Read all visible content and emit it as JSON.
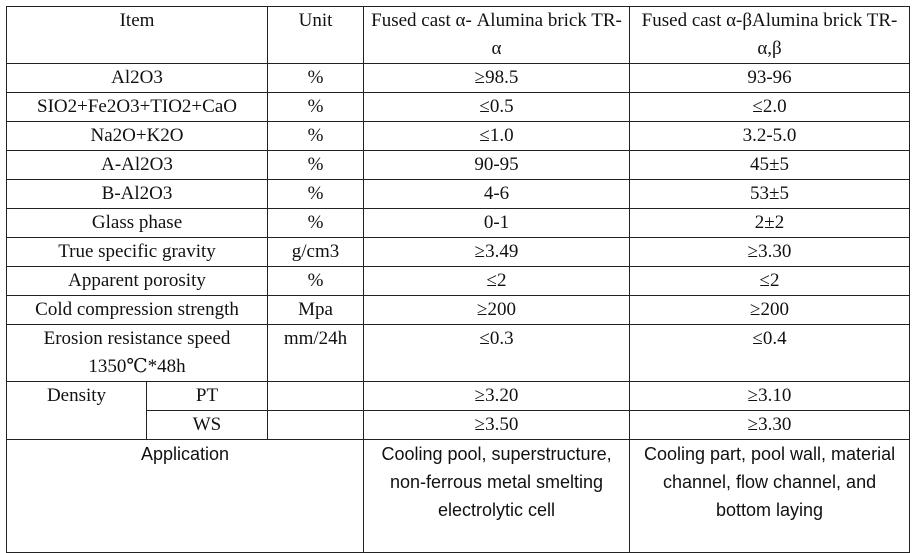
{
  "header": {
    "item": "Item",
    "unit": "Unit",
    "col_a": "Fused cast α- Alumina brick\nTR-α",
    "col_b": "Fused cast α-βAlumina brick\nTR-α,β"
  },
  "rows": [
    {
      "item": "Al2O3",
      "unit": "%",
      "a": "≥98.5",
      "b": "93-96"
    },
    {
      "item": "SIO2+Fe2O3+TIO2+CaO",
      "unit": "%",
      "a": "≤0.5",
      "b": "≤2.0"
    },
    {
      "item": "Na2O+K2O",
      "unit": "%",
      "a": "≤1.0",
      "b": "3.2-5.0"
    },
    {
      "item": "A-Al2O3",
      "unit": "%",
      "a": "90-95",
      "b": "45±5"
    },
    {
      "item": "B-Al2O3",
      "unit": "%",
      "a": "4-6",
      "b": "53±5"
    },
    {
      "item": "Glass phase",
      "unit": "%",
      "a": "0-1",
      "b": "2±2"
    },
    {
      "item": "True specific gravity",
      "unit": "g/cm3",
      "a": "≥3.49",
      "b": "≥3.30"
    },
    {
      "item": "Apparent porosity",
      "unit": "%",
      "a": "≤2",
      "b": "≤2"
    },
    {
      "item": "Cold compression strength",
      "unit": "Mpa",
      "a": "≥200",
      "b": "≥200"
    }
  ],
  "erosion": {
    "item": "Erosion resistance speed\n1350℃*48h",
    "unit": "mm/24h",
    "a": "≤0.3",
    "b": "≤0.4"
  },
  "density": {
    "label": "Density",
    "pt": {
      "label": "PT",
      "a": "≥3.20",
      "b": "≥3.10"
    },
    "ws": {
      "label": "WS",
      "a": "≥3.50",
      "b": "≥3.30"
    }
  },
  "application": {
    "label": "Application",
    "a": "Cooling pool, superstructure, non-ferrous metal smelting electrolytic cell",
    "b": "Cooling part, pool wall, material channel, flow channel, and bottom laying"
  }
}
